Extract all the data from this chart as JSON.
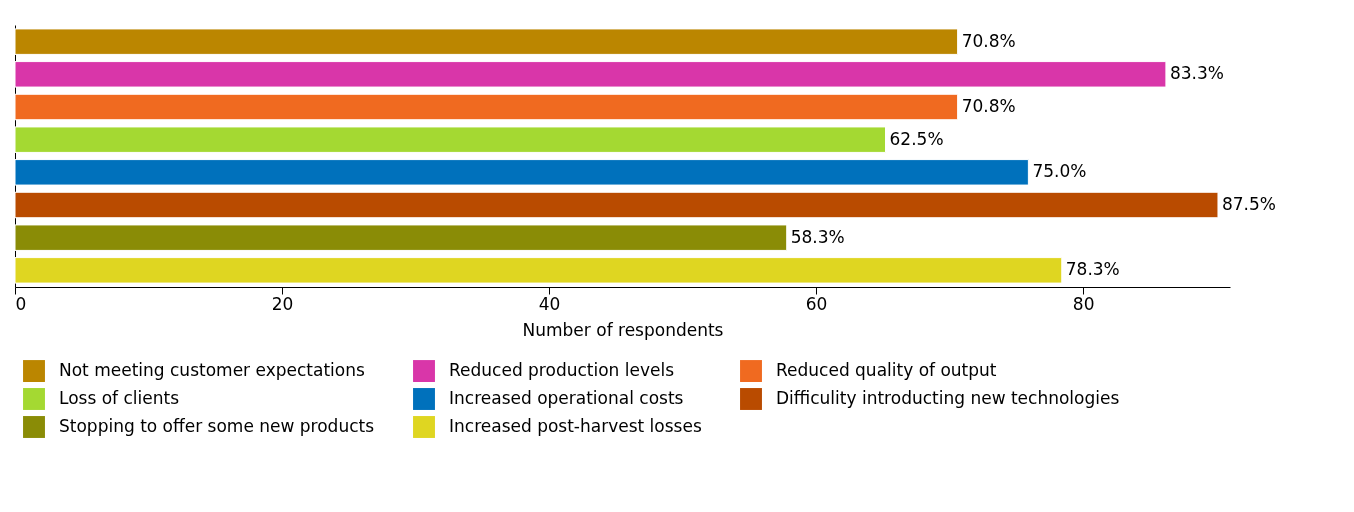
{
  "chart_data": {
    "type": "bar",
    "orientation": "horizontal",
    "xlabel": "Number of respondents",
    "categories": [
      null,
      null,
      null,
      null,
      null,
      null,
      null,
      null
    ],
    "xlim": [
      0,
      91
    ],
    "xticks": [
      0,
      20,
      40,
      60,
      80
    ],
    "legend": "bottom",
    "series": [
      {
        "name": "Not meeting customer expectations",
        "color": "#bb8600",
        "values": [
          70.6,
          null,
          null,
          null,
          null,
          null,
          null,
          null
        ]
      },
      {
        "name": "Reduced production levels",
        "color": "#d936a9",
        "values": [
          null,
          86.2,
          null,
          null,
          null,
          null,
          null,
          null
        ]
      },
      {
        "name": "Reduced quality of output",
        "color": "#f06a20",
        "values": [
          null,
          null,
          70.6,
          null,
          null,
          null,
          null,
          null
        ]
      },
      {
        "name": "Loss of clients",
        "color": "#a4d932",
        "values": [
          null,
          null,
          null,
          65.2,
          null,
          null,
          null,
          null
        ]
      },
      {
        "name": "Increased operational costs",
        "color": "#0071bc",
        "values": [
          null,
          null,
          null,
          null,
          75.9,
          null,
          null,
          null
        ]
      },
      {
        "name": "Difficulity introducting new technologies",
        "color": "#b94b00",
        "values": [
          null,
          null,
          null,
          null,
          null,
          90.1,
          null,
          null
        ]
      },
      {
        "name": "Stopping to offer some new products",
        "color": "#8a8c06",
        "values": [
          null,
          null,
          null,
          null,
          null,
          null,
          57.8,
          null
        ]
      },
      {
        "name": "Increased post-harvest losses",
        "color": "#dfd621",
        "values": [
          null,
          null,
          null,
          null,
          null,
          null,
          null,
          78.4
        ]
      }
    ],
    "annotations": [
      {
        "text": "70.8%",
        "x": 70.6
      },
      {
        "text": "83.3%",
        "x": 86.2
      },
      {
        "text": "70.8%",
        "x": 70.6
      },
      {
        "text": "62.5%",
        "x": 65.2
      },
      {
        "text": "75.0%",
        "x": 75.9
      },
      {
        "text": "87.5%",
        "x": 90.1
      },
      {
        "text": "58.3%",
        "x": 57.8
      },
      {
        "text": "78.3%",
        "x": 78.4
      }
    ]
  }
}
